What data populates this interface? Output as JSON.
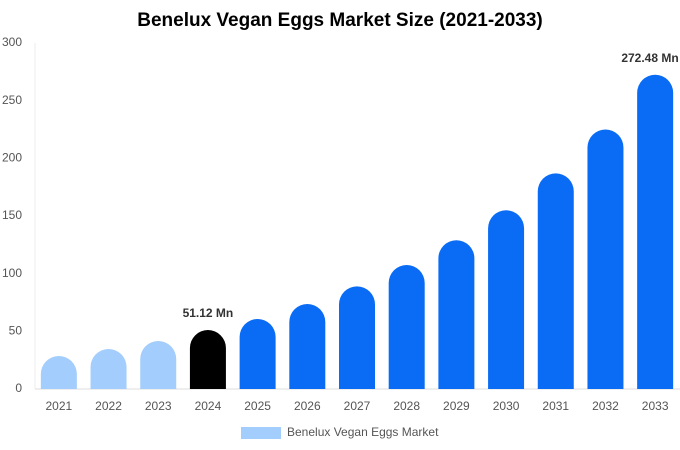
{
  "chart_data": {
    "type": "bar",
    "title": "Benelux Vegan Eggs Market Size (2021-2033)",
    "categories": [
      "2021",
      "2022",
      "2023",
      "2024",
      "2025",
      "2026",
      "2027",
      "2028",
      "2029",
      "2030",
      "2031",
      "2032",
      "2033"
    ],
    "series": [
      {
        "name": "Benelux Vegan Eggs Market",
        "color": "#a3cdfc",
        "values": [
          28.6,
          34.7,
          41.6,
          51.12,
          60.7,
          73.7,
          89,
          107.5,
          129,
          155,
          187,
          225,
          272.48
        ],
        "value_labels": [
          null,
          null,
          null,
          "51.12 Mn",
          null,
          null,
          null,
          null,
          null,
          null,
          null,
          null,
          "272.48 Mn"
        ],
        "colors": [
          "#a3cdfc",
          "#a3cdfc",
          "#a3cdfc",
          "#000000",
          "#0a6cf5",
          "#0a6cf5",
          "#0a6cf5",
          "#0a6cf5",
          "#0a6cf5",
          "#0a6cf5",
          "#0a6cf5",
          "#0a6cf5",
          "#0a6cf5"
        ]
      }
    ],
    "ylim": [
      0,
      300
    ],
    "yticks": [
      0,
      50,
      100,
      150,
      200,
      250,
      300
    ],
    "grid": false
  }
}
